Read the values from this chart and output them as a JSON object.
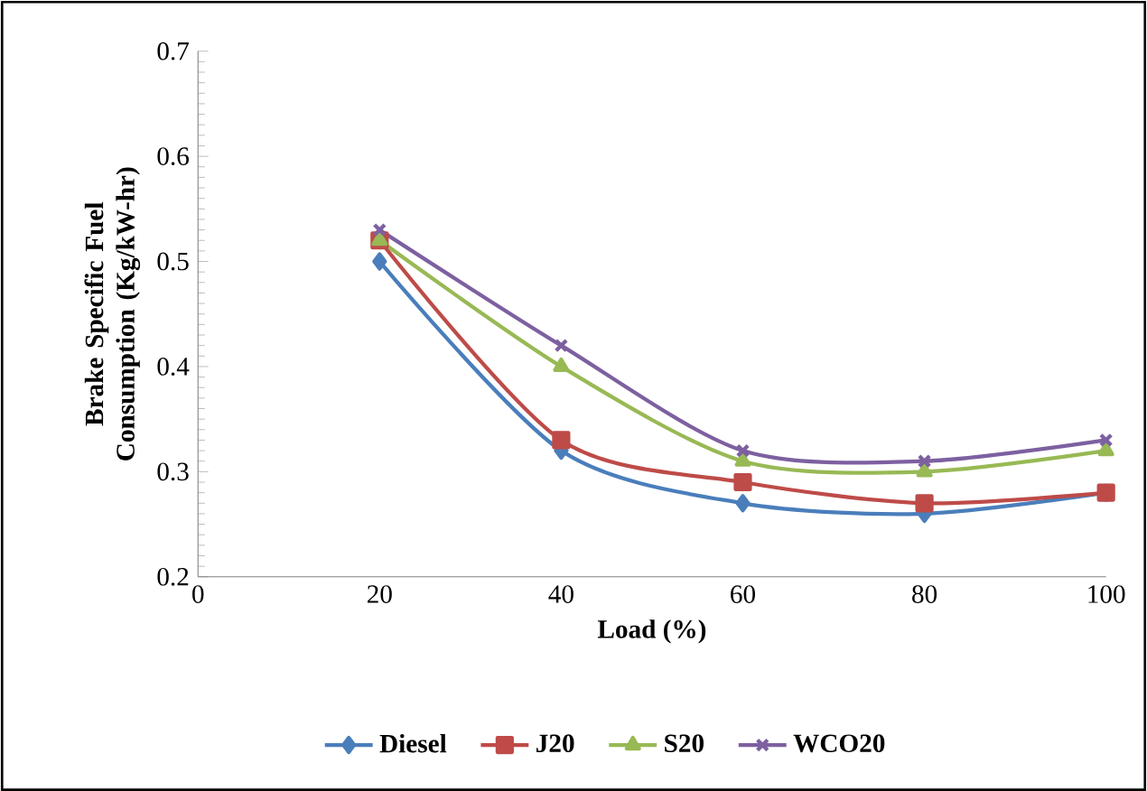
{
  "chart_data": {
    "type": "line",
    "xlabel": "Load (%)",
    "ylabel": "Brake Specific Fuel Consumption (Kg/kW-hr)",
    "x": [
      20,
      40,
      60,
      80,
      100
    ],
    "series": [
      {
        "name": "Diesel",
        "color": "#4a7ebb",
        "marker": "diamond",
        "values": [
          0.5,
          0.32,
          0.27,
          0.26,
          0.28
        ]
      },
      {
        "name": "J20",
        "color": "#be4b48",
        "marker": "square",
        "values": [
          0.52,
          0.33,
          0.29,
          0.27,
          0.28
        ]
      },
      {
        "name": "S20",
        "color": "#98b954",
        "marker": "triangle",
        "values": [
          0.52,
          0.4,
          0.31,
          0.3,
          0.32
        ]
      },
      {
        "name": "WCO20",
        "color": "#7d60a0",
        "marker": "cross",
        "values": [
          0.53,
          0.42,
          0.32,
          0.31,
          0.33
        ]
      }
    ],
    "xlim": [
      0,
      100
    ],
    "xticks": [
      0,
      20,
      40,
      60,
      80,
      100
    ],
    "ylim": [
      0.2,
      0.7
    ],
    "yticks": [
      0.2,
      0.3,
      0.4,
      0.5,
      0.6,
      0.7
    ],
    "grid": false,
    "legend": "bottom",
    "line_style": "solid"
  }
}
